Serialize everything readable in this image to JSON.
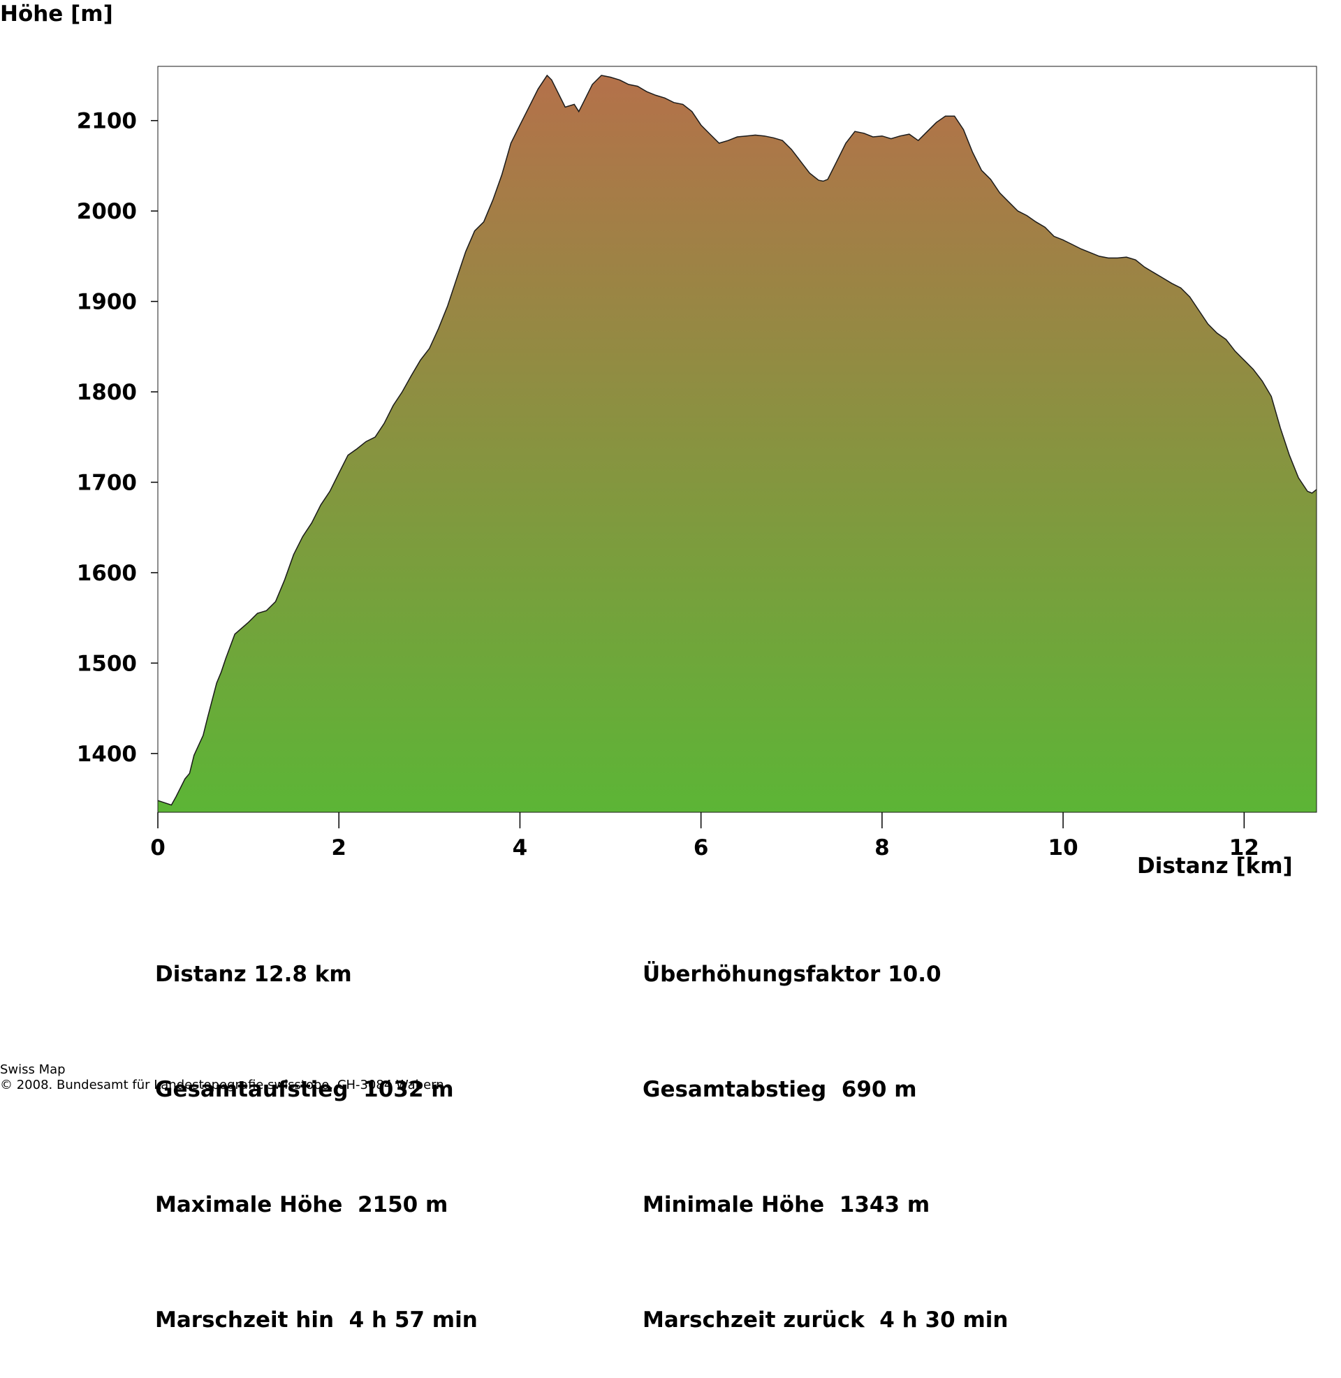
{
  "chart_data": {
    "type": "area",
    "ylabel": "Höhe [m]",
    "xlabel": "Distanz [km]",
    "xlim": [
      0,
      12.8
    ],
    "ylim": [
      1335,
      2160
    ],
    "x_ticks": [
      0,
      2,
      4,
      6,
      8,
      10,
      12
    ],
    "y_ticks": [
      1400,
      1500,
      1600,
      1700,
      1800,
      1900,
      2000,
      2100
    ],
    "grid": false,
    "fill_gradient": [
      "#5cb536",
      "#b4714a"
    ],
    "outline_color": "#1a1a1a",
    "series": [
      {
        "x": [
          0,
          0.15,
          0.2,
          0.3,
          0.35,
          0.4,
          0.5,
          0.55,
          0.65,
          0.7,
          0.75,
          0.85,
          1.0,
          1.1,
          1.2,
          1.3,
          1.4,
          1.5,
          1.6,
          1.7,
          1.8,
          1.9,
          2.0,
          2.1,
          2.2,
          2.3,
          2.4,
          2.5,
          2.6,
          2.7,
          2.8,
          2.9,
          3.0,
          3.1,
          3.2,
          3.3,
          3.4,
          3.5,
          3.6,
          3.7,
          3.8,
          3.9,
          4.0,
          4.1,
          4.2,
          4.3,
          4.35,
          4.4,
          4.5,
          4.6,
          4.65,
          4.7,
          4.8,
          4.9,
          5.0,
          5.1,
          5.2,
          5.3,
          5.4,
          5.5,
          5.6,
          5.7,
          5.8,
          5.9,
          6.0,
          6.1,
          6.2,
          6.3,
          6.4,
          6.5,
          6.6,
          6.7,
          6.8,
          6.9,
          7.0,
          7.1,
          7.2,
          7.3,
          7.35,
          7.4,
          7.5,
          7.6,
          7.7,
          7.8,
          7.9,
          8.0,
          8.1,
          8.2,
          8.3,
          8.4,
          8.5,
          8.6,
          8.7,
          8.8,
          8.9,
          9.0,
          9.1,
          9.2,
          9.3,
          9.4,
          9.5,
          9.6,
          9.7,
          9.8,
          9.9,
          10.0,
          10.1,
          10.2,
          10.3,
          10.4,
          10.5,
          10.6,
          10.7,
          10.8,
          10.9,
          11.0,
          11.1,
          11.2,
          11.3,
          11.4,
          11.5,
          11.6,
          11.7,
          11.8,
          11.9,
          12.0,
          12.1,
          12.2,
          12.3,
          12.4,
          12.5,
          12.6,
          12.7,
          12.75,
          12.8
        ],
        "y": [
          1348,
          1343,
          1352,
          1372,
          1378,
          1398,
          1420,
          1440,
          1478,
          1490,
          1505,
          1532,
          1545,
          1555,
          1558,
          1568,
          1592,
          1620,
          1640,
          1655,
          1675,
          1690,
          1710,
          1730,
          1737,
          1745,
          1750,
          1765,
          1785,
          1800,
          1818,
          1835,
          1848,
          1870,
          1895,
          1925,
          1955,
          1978,
          1988,
          2012,
          2040,
          2075,
          2095,
          2115,
          2135,
          2150,
          2145,
          2135,
          2115,
          2118,
          2110,
          2120,
          2140,
          2150,
          2148,
          2145,
          2140,
          2138,
          2132,
          2128,
          2125,
          2120,
          2118,
          2110,
          2095,
          2085,
          2075,
          2078,
          2082,
          2083,
          2084,
          2083,
          2081,
          2078,
          2068,
          2055,
          2042,
          2034,
          2033,
          2035,
          2055,
          2075,
          2088,
          2086,
          2082,
          2083,
          2080,
          2083,
          2085,
          2078,
          2088,
          2098,
          2105,
          2105,
          2090,
          2065,
          2045,
          2035,
          2020,
          2010,
          2000,
          1995,
          1988,
          1982,
          1972,
          1968,
          1963,
          1958,
          1954,
          1950,
          1948,
          1948,
          1949,
          1946,
          1938,
          1932,
          1926,
          1920,
          1915,
          1905,
          1890,
          1875,
          1865,
          1858,
          1845,
          1835,
          1825,
          1812,
          1795,
          1760,
          1730,
          1705,
          1690,
          1688,
          1692
        ]
      }
    ]
  },
  "stats": {
    "left": [
      "Distanz 12.8 km",
      "Gesamtaufstieg  1032 m",
      "Maximale Höhe  2150 m",
      "Marschzeit hin  4 h 57 min"
    ],
    "right": [
      "Überhöhungsfaktor 10.0",
      "Gesamtabstieg  690 m",
      "Minimale Höhe  1343 m",
      "Marschzeit zurück  4 h 30 min"
    ]
  },
  "footer": {
    "line1": "Swiss Map",
    "line2": "© 2008. Bundesamt für Landestopografie swisstopo, CH-3084 Wabern"
  }
}
